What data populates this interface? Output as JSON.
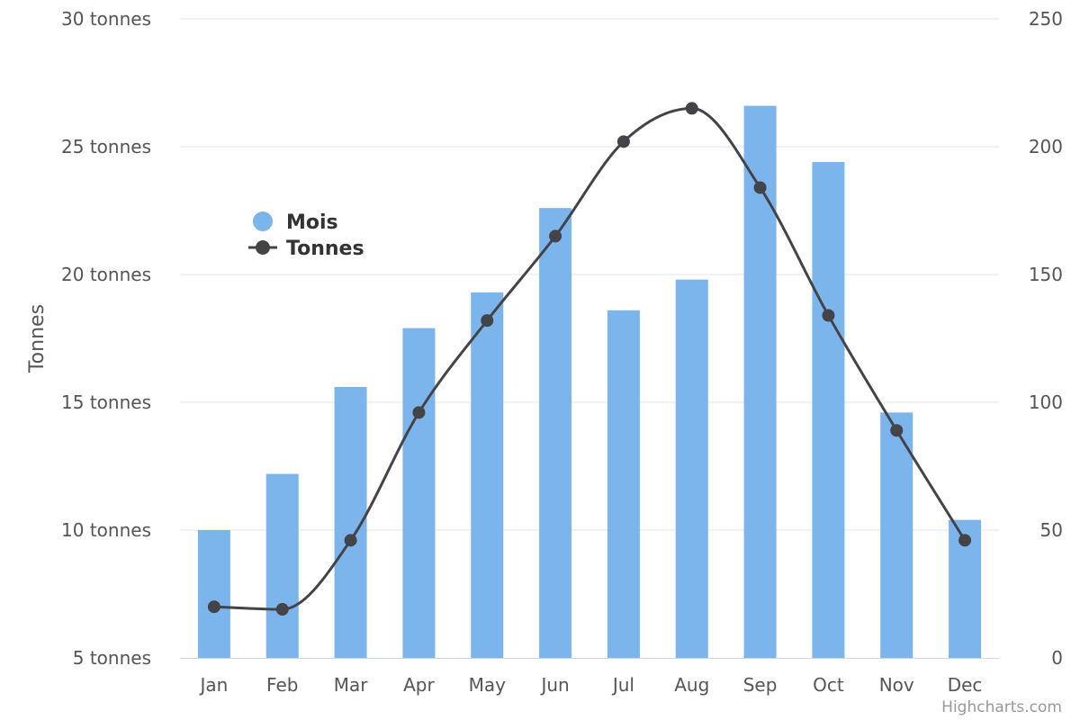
{
  "chart_data": {
    "type": "bar",
    "categories": [
      "Jan",
      "Feb",
      "Mar",
      "Apr",
      "May",
      "Jun",
      "Jul",
      "Aug",
      "Sep",
      "Oct",
      "Nov",
      "Dec"
    ],
    "series": [
      {
        "name": "Mois",
        "type": "bar",
        "axis": "left",
        "color": "#7cb5ec",
        "values": [
          10.0,
          12.2,
          15.6,
          17.9,
          19.3,
          22.6,
          18.6,
          19.8,
          26.6,
          24.4,
          14.6,
          10.4
        ]
      },
      {
        "name": "Tonnes",
        "type": "line",
        "axis": "right",
        "color": "#434348",
        "smooth": true,
        "values": [
          20,
          19,
          46,
          96,
          132,
          165,
          202,
          215,
          184,
          134,
          89,
          46
        ]
      }
    ],
    "y_left": {
      "title": "Tonnes",
      "min": 5,
      "max": 30,
      "ticks": [
        5,
        10,
        15,
        20,
        25,
        30
      ],
      "tick_labels": [
        "5 tonnes",
        "10 tonnes",
        "15 tonnes",
        "20 tonnes",
        "25 tonnes",
        "30 tonnes"
      ]
    },
    "y_right": {
      "min": 0,
      "max": 250,
      "ticks": [
        0,
        50,
        100,
        150,
        200,
        250
      ],
      "tick_labels": [
        "0",
        "50",
        "100",
        "150",
        "200",
        "250"
      ]
    },
    "grid": true,
    "legend": {
      "position": "top-left inside plot",
      "items": [
        {
          "name": "Mois",
          "symbol": "circle",
          "color": "#7cb5ec"
        },
        {
          "name": "Tonnes",
          "symbol": "line-circle",
          "color": "#434348"
        }
      ]
    },
    "credits": "Highcharts.com"
  }
}
